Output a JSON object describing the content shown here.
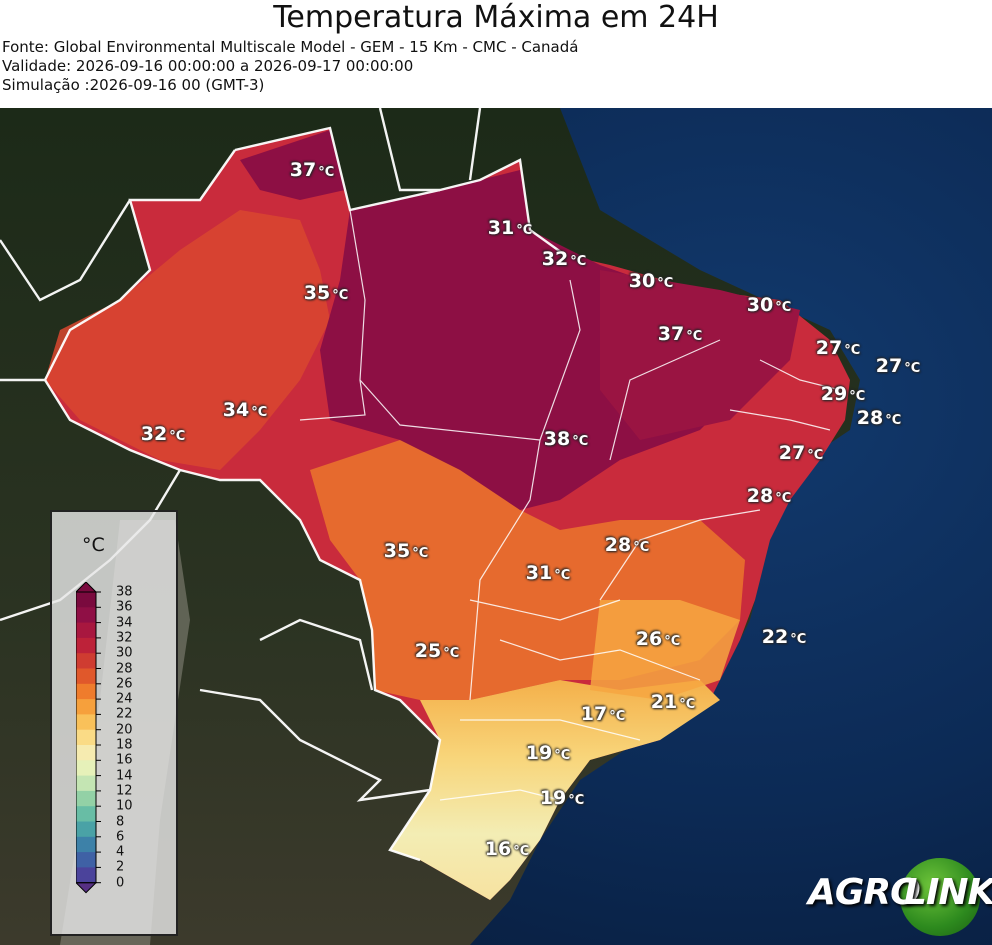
{
  "header": {
    "title": "Temperatura Máxima em 24H",
    "source": "Fonte: Global Environmental Multiscale Model - GEM - 15 Km - CMC - Canadá",
    "validity": "Validade: 2026-09-16 00:00:00 a 2026-09-17 00:00:00",
    "simulation": "Simulação :2026-09-16 00 (GMT-3)"
  },
  "legend": {
    "unit": "°C",
    "ticks": [
      "38",
      "36",
      "34",
      "32",
      "30",
      "28",
      "26",
      "24",
      "22",
      "20",
      "18",
      "16",
      "14",
      "12",
      "10",
      "8",
      "6",
      "4",
      "2",
      "0"
    ],
    "colors": [
      "#7a0a3e",
      "#8f0f45",
      "#a8173f",
      "#bd2239",
      "#cf3c31",
      "#e0582b",
      "#ef7c2c",
      "#f6a03c",
      "#f9c15a",
      "#fadb86",
      "#f6ebb0",
      "#e6f1b9",
      "#c4e5b3",
      "#93d1a6",
      "#68bda5",
      "#4aa2a6",
      "#3d81a8",
      "#3f61a5",
      "#4b439b",
      "#563083"
    ]
  },
  "temperature_labels": [
    {
      "value": "37",
      "unit": "°C"
    },
    {
      "value": "31",
      "unit": "°C"
    },
    {
      "value": "32",
      "unit": "°C"
    },
    {
      "value": "35",
      "unit": "°C"
    },
    {
      "value": "30",
      "unit": "°C"
    },
    {
      "value": "30",
      "unit": "°C"
    },
    {
      "value": "37",
      "unit": "°C"
    },
    {
      "value": "27",
      "unit": "°C"
    },
    {
      "value": "27",
      "unit": "°C"
    },
    {
      "value": "29",
      "unit": "°C"
    },
    {
      "value": "28",
      "unit": "°C"
    },
    {
      "value": "34",
      "unit": "°C"
    },
    {
      "value": "32",
      "unit": "°C"
    },
    {
      "value": "38",
      "unit": "°C"
    },
    {
      "value": "27",
      "unit": "°C"
    },
    {
      "value": "28",
      "unit": "°C"
    },
    {
      "value": "35",
      "unit": "°C"
    },
    {
      "value": "28",
      "unit": "°C"
    },
    {
      "value": "31",
      "unit": "°C"
    },
    {
      "value": "26",
      "unit": "°C"
    },
    {
      "value": "22",
      "unit": "°C"
    },
    {
      "value": "25",
      "unit": "°C"
    },
    {
      "value": "21",
      "unit": "°C"
    },
    {
      "value": "17",
      "unit": "°C"
    },
    {
      "value": "19",
      "unit": "°C"
    },
    {
      "value": "19",
      "unit": "°C"
    },
    {
      "value": "16",
      "unit": "°C"
    }
  ],
  "logo": {
    "part1": "AGRO",
    "part2": "LINK"
  }
}
